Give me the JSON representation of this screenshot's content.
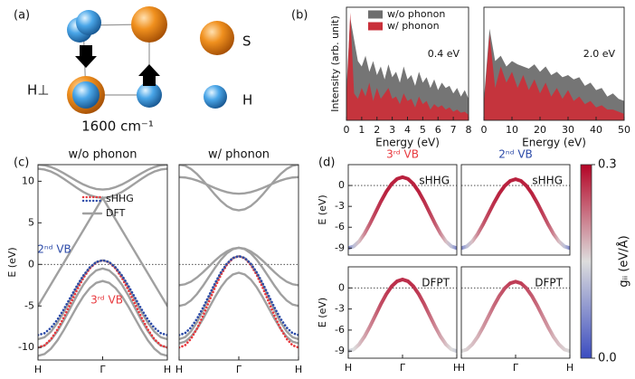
{
  "panel_labels": [
    "(a)",
    "(b)",
    "(c)",
    "(d)"
  ],
  "diagram": {
    "mode_label": "H⊥",
    "frequency": "1600 cm⁻¹",
    "legend": [
      "S",
      "H"
    ]
  },
  "chart_data": [
    {
      "type": "area",
      "ylabel": "Intensity (arb. unit)",
      "xlabel": "Energy (eV)",
      "annotation": "0.4 eV",
      "legend": "upper center",
      "x": [
        0,
        0.25,
        0.5,
        0.75,
        1,
        1.25,
        1.5,
        1.75,
        2,
        2.25,
        2.5,
        2.75,
        3,
        3.25,
        3.5,
        3.75,
        4,
        4.25,
        4.5,
        4.75,
        5,
        5.25,
        5.5,
        5.75,
        6,
        6.25,
        6.5,
        6.75,
        7,
        7.25,
        7.5,
        7.75,
        8
      ],
      "xlim": [
        0,
        8
      ],
      "xticks": [
        0,
        1,
        2,
        3,
        4,
        5,
        6,
        7,
        8
      ],
      "ylim": [
        0,
        1.05
      ],
      "series": [
        {
          "name": "w/o phonon",
          "color": "#6e6e6e",
          "values": [
            0.3,
            0.95,
            0.75,
            0.55,
            0.5,
            0.6,
            0.45,
            0.55,
            0.42,
            0.5,
            0.38,
            0.52,
            0.4,
            0.45,
            0.35,
            0.5,
            0.38,
            0.42,
            0.32,
            0.45,
            0.35,
            0.4,
            0.3,
            0.38,
            0.28,
            0.35,
            0.3,
            0.32,
            0.25,
            0.3,
            0.22,
            0.28,
            0.2
          ]
        },
        {
          "name": "w/ phonon",
          "color": "#c9303a",
          "values": [
            0.2,
            1.0,
            0.25,
            0.2,
            0.3,
            0.22,
            0.35,
            0.18,
            0.3,
            0.2,
            0.25,
            0.3,
            0.2,
            0.22,
            0.15,
            0.25,
            0.18,
            0.2,
            0.12,
            0.22,
            0.15,
            0.18,
            0.1,
            0.15,
            0.12,
            0.14,
            0.1,
            0.12,
            0.08,
            0.1,
            0.07,
            0.08,
            0.05
          ]
        }
      ]
    },
    {
      "type": "area",
      "xlabel": "Energy (eV)",
      "annotation": "2.0 eV",
      "x": [
        0,
        2,
        4,
        6,
        8,
        10,
        12,
        14,
        16,
        18,
        20,
        22,
        24,
        26,
        28,
        30,
        32,
        34,
        36,
        38,
        40,
        42,
        44,
        46,
        48,
        50
      ],
      "xlim": [
        0,
        50
      ],
      "xticks": [
        0,
        10,
        20,
        30,
        40,
        50
      ],
      "ylim": [
        0,
        1.05
      ],
      "series": [
        {
          "color": "#6e6e6e",
          "values": [
            0.2,
            0.85,
            0.55,
            0.6,
            0.5,
            0.55,
            0.52,
            0.5,
            0.48,
            0.52,
            0.45,
            0.5,
            0.42,
            0.45,
            0.4,
            0.42,
            0.38,
            0.4,
            0.32,
            0.35,
            0.28,
            0.3,
            0.22,
            0.25,
            0.2,
            0.18
          ]
        },
        {
          "color": "#c9303a",
          "values": [
            0.15,
            0.8,
            0.3,
            0.5,
            0.35,
            0.45,
            0.3,
            0.42,
            0.28,
            0.38,
            0.25,
            0.35,
            0.22,
            0.3,
            0.2,
            0.28,
            0.18,
            0.22,
            0.15,
            0.18,
            0.12,
            0.14,
            0.1,
            0.1,
            0.08,
            0.06
          ]
        }
      ]
    },
    {
      "type": "line",
      "title": "w/o phonon",
      "ylabel": "E (eV)",
      "reference_line": 0,
      "x": [
        -1,
        -0.9,
        -0.8,
        -0.7,
        -0.6,
        -0.5,
        -0.4,
        -0.3,
        -0.2,
        -0.1,
        0,
        0.1,
        0.2,
        0.3,
        0.4,
        0.5,
        0.6,
        0.7,
        0.8,
        0.9,
        1
      ],
      "xlim": [
        -1,
        1
      ],
      "xticks": [
        {
          "value": -1,
          "label": "H"
        },
        {
          "value": 0,
          "label": "Γ"
        },
        {
          "value": 1,
          "label": "H"
        }
      ],
      "ylim": [
        -11.5,
        12
      ],
      "yticks": [
        10,
        5,
        0,
        -5,
        -10
      ],
      "legend": [
        {
          "label": "sHHG",
          "colors": [
            "#e8383d",
            "#2b4aa8"
          ],
          "style": "dotted"
        },
        {
          "label": "DFT",
          "colors": [
            "#a0a0a0"
          ],
          "style": "solid"
        }
      ],
      "series": [
        {
          "color": "#a0a0a0",
          "style": "solid",
          "values": [
            -9,
            -8.77,
            -8.09,
            -7.04,
            -5.72,
            -4.25,
            -2.78,
            -1.46,
            -0.41,
            0.27,
            0.5,
            0.27,
            -0.41,
            -1.46,
            -2.78,
            -4.25,
            -5.72,
            -7.04,
            -8.09,
            -8.77,
            -9
          ]
        },
        {
          "color": "#a0a0a0",
          "style": "solid",
          "values": [
            -10,
            -9.77,
            -9.09,
            -8.04,
            -6.72,
            -5.25,
            -3.78,
            -2.46,
            -1.41,
            -0.73,
            -0.5,
            -0.73,
            -1.41,
            -2.46,
            -3.78,
            -5.25,
            -6.72,
            -8.04,
            -9.09,
            -9.77,
            -10
          ]
        },
        {
          "color": "#a0a0a0",
          "style": "solid",
          "values": [
            -11,
            -10.78,
            -10.14,
            -9.15,
            -7.89,
            -6.5,
            -5.11,
            -3.85,
            -2.86,
            -2.22,
            -2,
            -2.22,
            -2.86,
            -3.85,
            -5.11,
            -6.5,
            -7.89,
            -9.15,
            -10.14,
            -10.78,
            -11
          ]
        },
        {
          "color": "#a0a0a0",
          "style": "solid",
          "values": [
            -5,
            -3.7,
            -2.4,
            -1.1,
            0.2,
            1.5,
            2.8,
            4.1,
            5.4,
            6.7,
            8,
            6.7,
            5.4,
            4.1,
            2.8,
            1.5,
            0.2,
            -1.1,
            -2.4,
            -3.7,
            -5
          ]
        },
        {
          "color": "#a0a0a0",
          "style": "solid",
          "values": [
            11.5,
            11.41,
            11.17,
            10.78,
            10.29,
            9.75,
            9.21,
            8.72,
            8.33,
            8.09,
            8,
            8.09,
            8.33,
            8.72,
            9.21,
            9.75,
            10.29,
            10.78,
            11.17,
            11.41,
            11.5
          ]
        },
        {
          "color": "#a0a0a0",
          "style": "solid",
          "values": [
            12,
            11.93,
            11.71,
            11.38,
            10.96,
            10.5,
            10.04,
            9.62,
            9.29,
            9.07,
            9,
            9.07,
            9.29,
            9.62,
            10.04,
            10.5,
            10.96,
            11.38,
            11.71,
            11.93,
            12
          ]
        },
        {
          "name": "3ʳᵈ VB",
          "color": "#e8383d",
          "style": "dotted",
          "values": [
            -10,
            -9.74,
            -9,
            -7.84,
            -6.37,
            -4.75,
            -3.13,
            -1.66,
            -0.5,
            0.24,
            0.5,
            0.24,
            -0.5,
            -1.66,
            -3.13,
            -4.75,
            -6.37,
            -7.84,
            -9,
            -9.74,
            -10
          ]
        },
        {
          "name": "2ⁿᵈ VB",
          "color": "#2b4aa8",
          "style": "dotted",
          "values": [
            -8.5,
            -8.28,
            -7.64,
            -6.65,
            -5.39,
            -4,
            -2.61,
            -1.35,
            -0.36,
            0.28,
            0.5,
            0.28,
            -0.36,
            -1.35,
            -2.61,
            -4,
            -5.39,
            -6.65,
            -7.64,
            -8.28,
            -8.5
          ]
        }
      ]
    },
    {
      "type": "line",
      "title": "w/ phonon",
      "reference_line": 0,
      "x": [
        -1,
        -0.9,
        -0.8,
        -0.7,
        -0.6,
        -0.5,
        -0.4,
        -0.3,
        -0.2,
        -0.1,
        0,
        0.1,
        0.2,
        0.3,
        0.4,
        0.5,
        0.6,
        0.7,
        0.8,
        0.9,
        1
      ],
      "xlim": [
        -1,
        1
      ],
      "xticks": [
        {
          "value": -1,
          "label": "H"
        },
        {
          "value": 0,
          "label": "Γ"
        },
        {
          "value": 1,
          "label": "H"
        }
      ],
      "ylim": [
        -11.5,
        12
      ],
      "series": [
        {
          "color": "#a0a0a0",
          "style": "solid",
          "values": [
            -9,
            -8.76,
            -8.05,
            -6.94,
            -5.55,
            -4,
            -2.46,
            -1.06,
            0.05,
            0.76,
            1,
            0.76,
            0.05,
            -1.06,
            -2.46,
            -4,
            -5.55,
            -6.94,
            -8.05,
            -8.76,
            -9
          ]
        },
        {
          "color": "#a0a0a0",
          "style": "solid",
          "values": [
            -9.5,
            -9.29,
            -8.69,
            -7.75,
            -6.56,
            -5.25,
            -3.94,
            -2.75,
            -1.81,
            -1.21,
            -1,
            -1.21,
            -1.81,
            -2.75,
            -3.94,
            -5.25,
            -6.56,
            -7.75,
            -8.69,
            -9.29,
            -9.5
          ]
        },
        {
          "color": "#a0a0a0",
          "style": "solid",
          "values": [
            -5,
            -4.83,
            -4.33,
            -3.56,
            -2.58,
            -1.5,
            -0.42,
            0.56,
            1.33,
            1.83,
            2,
            1.83,
            1.33,
            0.56,
            -0.42,
            -1.5,
            -2.58,
            -3.56,
            -4.33,
            -4.83,
            -5
          ]
        },
        {
          "color": "#a0a0a0",
          "style": "solid",
          "values": [
            -2.5,
            -2.39,
            -2.07,
            -1.57,
            -0.95,
            -0.25,
            0.45,
            1.07,
            1.57,
            1.89,
            2,
            1.89,
            1.57,
            1.07,
            0.45,
            -0.25,
            -0.95,
            -1.57,
            -2.07,
            -2.39,
            -2.5
          ]
        },
        {
          "color": "#a0a0a0",
          "style": "solid",
          "values": [
            12,
            11.87,
            11.47,
            10.87,
            10.1,
            9.25,
            8.4,
            7.63,
            7.02,
            6.63,
            6.5,
            6.63,
            7.02,
            7.63,
            8.4,
            9.25,
            10.1,
            10.87,
            11.47,
            11.87,
            12
          ]
        },
        {
          "color": "#a0a0a0",
          "style": "solid",
          "values": [
            10.5,
            10.45,
            10.31,
            10.09,
            9.81,
            9.5,
            9.19,
            8.91,
            8.69,
            8.55,
            8.5,
            8.55,
            8.69,
            8.91,
            9.19,
            9.5,
            9.81,
            10.09,
            10.31,
            10.45,
            10.5
          ]
        },
        {
          "color": "#e8383d",
          "style": "dotted",
          "values": [
            -10,
            -9.73,
            -8.95,
            -7.73,
            -6.2,
            -4.5,
            -2.8,
            -1.27,
            -0.05,
            0.73,
            1,
            0.73,
            -0.05,
            -1.27,
            -2.8,
            -4.5,
            -6.2,
            -7.73,
            -8.95,
            -9.73,
            -10
          ]
        },
        {
          "color": "#2b4aa8",
          "style": "dotted",
          "values": [
            -8.5,
            -8.27,
            -7.59,
            -6.54,
            -5.22,
            -3.75,
            -2.28,
            -0.96,
            0.09,
            0.77,
            1,
            0.77,
            0.09,
            -0.96,
            -2.28,
            -3.75,
            -5.22,
            -6.54,
            -7.59,
            -8.27,
            -8.5
          ]
        }
      ]
    },
    {
      "type": "band",
      "title": "3ʳᵈ VB",
      "title_color": "#e8383d",
      "label": "sHHG",
      "ylabel": "E (eV)",
      "reference_line": 0,
      "x": [
        -1,
        -0.9,
        -0.8,
        -0.7,
        -0.6,
        -0.5,
        -0.4,
        -0.3,
        -0.2,
        -0.1,
        0,
        0.1,
        0.2,
        0.3,
        0.4,
        0.5,
        0.6,
        0.7,
        0.8,
        0.9,
        1
      ],
      "xlim": [
        -1,
        1
      ],
      "ylim": [
        -10,
        3
      ],
      "yticks": [
        0,
        -3,
        -6,
        -9
      ],
      "values": [
        -9,
        -8.75,
        -8.03,
        -6.9,
        -5.48,
        -3.9,
        -2.32,
        -0.9,
        0.23,
        0.95,
        1.2,
        0.95,
        0.23,
        -0.9,
        -2.32,
        -3.9,
        -5.48,
        -6.9,
        -8.03,
        -8.75,
        -9
      ],
      "g": [
        0.06,
        0.12,
        0.17,
        0.21,
        0.24,
        0.26,
        0.27,
        0.28,
        0.28,
        0.28,
        0.28,
        0.28,
        0.28,
        0.28,
        0.27,
        0.26,
        0.24,
        0.21,
        0.17,
        0.12,
        0.06
      ]
    },
    {
      "type": "band",
      "title": "2ⁿᵈ VB",
      "title_color": "#2b4aa8",
      "label": "sHHG",
      "reference_line": 0,
      "x": [
        -1,
        -0.9,
        -0.8,
        -0.7,
        -0.6,
        -0.5,
        -0.4,
        -0.3,
        -0.2,
        -0.1,
        0,
        0.1,
        0.2,
        0.3,
        0.4,
        0.5,
        0.6,
        0.7,
        0.8,
        0.9,
        1
      ],
      "xlim": [
        -1,
        1
      ],
      "ylim": [
        -10,
        3
      ],
      "values": [
        -9,
        -8.76,
        -8.05,
        -6.96,
        -5.58,
        -4.05,
        -2.52,
        -1.14,
        -0.05,
        0.66,
        0.9,
        0.66,
        -0.05,
        -1.14,
        -2.52,
        -4.05,
        -5.58,
        -6.96,
        -8.05,
        -8.76,
        -9
      ],
      "g": [
        0.06,
        0.12,
        0.17,
        0.21,
        0.24,
        0.26,
        0.27,
        0.28,
        0.28,
        0.28,
        0.28,
        0.28,
        0.28,
        0.28,
        0.27,
        0.26,
        0.24,
        0.21,
        0.17,
        0.12,
        0.06
      ]
    },
    {
      "type": "band",
      "label": "DFPT",
      "ylabel": "E (eV)",
      "reference_line": 0,
      "x": [
        -1,
        -0.9,
        -0.8,
        -0.7,
        -0.6,
        -0.5,
        -0.4,
        -0.3,
        -0.2,
        -0.1,
        0,
        0.1,
        0.2,
        0.3,
        0.4,
        0.5,
        0.6,
        0.7,
        0.8,
        0.9,
        1
      ],
      "xlim": [
        -1,
        1
      ],
      "xticks": [
        {
          "value": -1,
          "label": "H"
        },
        {
          "value": 0,
          "label": "Γ"
        },
        {
          "value": 1,
          "label": "H"
        }
      ],
      "ylim": [
        -10,
        3
      ],
      "yticks": [
        0,
        -3,
        -6,
        -9
      ],
      "values": [
        -9,
        -8.75,
        -8.03,
        -6.9,
        -5.48,
        -3.9,
        -2.32,
        -0.9,
        0.23,
        0.95,
        1.2,
        0.95,
        0.23,
        -0.9,
        -2.32,
        -3.9,
        -5.48,
        -6.9,
        -8.03,
        -8.75,
        -9
      ],
      "g": [
        0.13,
        0.15,
        0.17,
        0.19,
        0.21,
        0.23,
        0.25,
        0.26,
        0.27,
        0.27,
        0.27,
        0.27,
        0.27,
        0.26,
        0.25,
        0.23,
        0.21,
        0.19,
        0.17,
        0.15,
        0.13
      ]
    },
    {
      "type": "band",
      "label": "DFPT",
      "reference_line": 0,
      "x": [
        -1,
        -0.9,
        -0.8,
        -0.7,
        -0.6,
        -0.5,
        -0.4,
        -0.3,
        -0.2,
        -0.1,
        0,
        0.1,
        0.2,
        0.3,
        0.4,
        0.5,
        0.6,
        0.7,
        0.8,
        0.9,
        1
      ],
      "xlim": [
        -1,
        1
      ],
      "xticks": [
        {
          "value": -1,
          "label": "H"
        },
        {
          "value": 0,
          "label": "Γ"
        },
        {
          "value": 1,
          "label": "H"
        }
      ],
      "ylim": [
        -10,
        3
      ],
      "values": [
        -9,
        -8.76,
        -8.05,
        -6.96,
        -5.58,
        -4.05,
        -2.52,
        -1.14,
        -0.05,
        0.66,
        0.9,
        0.66,
        -0.05,
        -1.14,
        -2.52,
        -4.05,
        -5.58,
        -6.96,
        -8.05,
        -8.76,
        -9
      ],
      "g": [
        0.15,
        0.16,
        0.17,
        0.18,
        0.2,
        0.21,
        0.23,
        0.24,
        0.25,
        0.26,
        0.26,
        0.26,
        0.25,
        0.24,
        0.23,
        0.21,
        0.2,
        0.18,
        0.17,
        0.16,
        0.15
      ]
    },
    {
      "type": "colorbar",
      "label": "gᵢᵢ (eV/Å)",
      "colormap": [
        "#3b4cc0",
        "#dddddd",
        "#b40426"
      ],
      "ylim": [
        0,
        0.3
      ],
      "yticks": [
        {
          "value": 0,
          "label": "0.0"
        },
        0.3
      ]
    }
  ]
}
